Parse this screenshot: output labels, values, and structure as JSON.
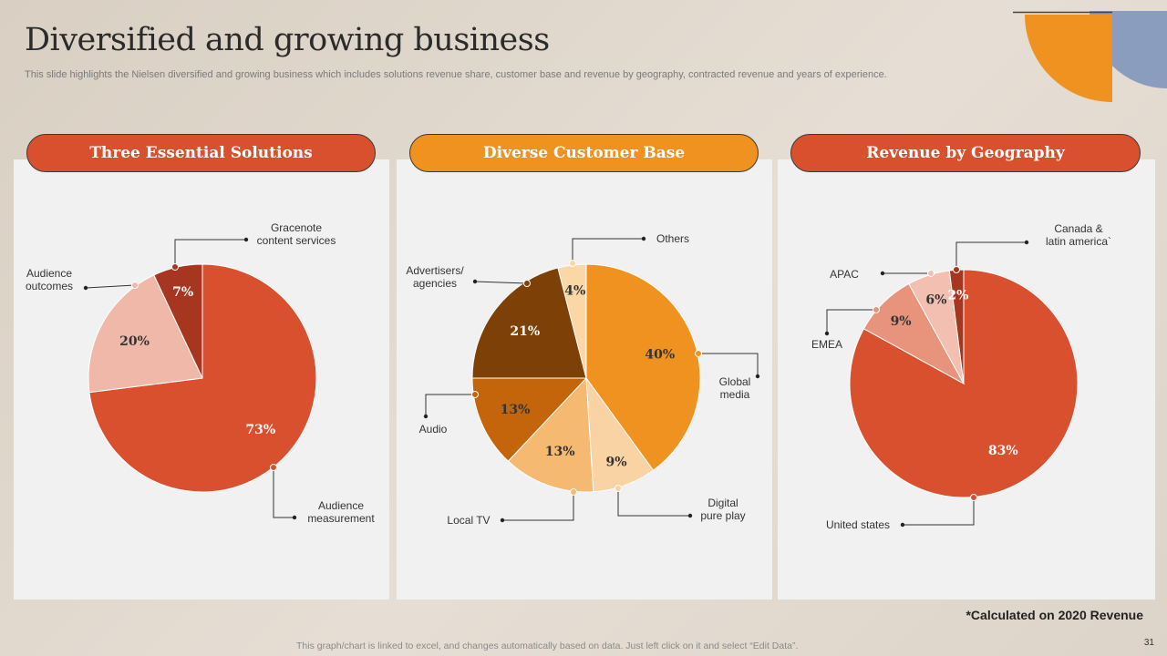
{
  "slide": {
    "title": "Diversified and growing business",
    "subtitle": "This slide highlights the Nielsen diversified and growing business which includes solutions revenue share, customer base and revenue by geography, contracted revenue and years of experience.",
    "footnote": "*Calculated on 2020 Revenue",
    "footer": "This graph/chart is linked to excel,  and changes automatically based on data. Just left click on it and select “Edit Data”.",
    "page_number": "31"
  },
  "colors": {
    "red": "#d9502f",
    "orange": "#f0921f",
    "deco_blue": "#8a9dbf"
  },
  "panels": [
    {
      "header": "Three Essential Solutions",
      "header_color": "#d9502f"
    },
    {
      "header": "Diverse Customer Base",
      "header_color": "#f0921f"
    },
    {
      "header": "Revenue by Geography",
      "header_color": "#d9502f"
    }
  ],
  "chart_data": [
    {
      "type": "pie",
      "title": "Three Essential Solutions",
      "slices": [
        {
          "label": [
            "Audience",
            "measurement"
          ],
          "value": 73,
          "display": "73%",
          "color": "#d9502f",
          "label_color": "#ffffff"
        },
        {
          "label": [
            "Audience",
            "outcomes"
          ],
          "value": 20,
          "display": "20%",
          "color": "#f0b8a8",
          "label_color": "#333333"
        },
        {
          "label": [
            "Gracenote",
            "content services"
          ],
          "value": 7,
          "display": "7%",
          "color": "#a73620",
          "label_color": "#ffffff"
        }
      ]
    },
    {
      "type": "pie",
      "title": "Diverse Customer Base",
      "slices": [
        {
          "label": [
            "Global",
            "media"
          ],
          "value": 40,
          "display": "40%",
          "color": "#f0921f",
          "label_color": "#333333"
        },
        {
          "label": [
            "Digital",
            "pure play"
          ],
          "value": 9,
          "display": "9%",
          "color": "#f9d3a3",
          "label_color": "#333333"
        },
        {
          "label": [
            "Local TV"
          ],
          "value": 13,
          "display": "13%",
          "color": "#f5b971",
          "label_color": "#333333"
        },
        {
          "label": [
            "Audio"
          ],
          "value": 13,
          "display": "13%",
          "color": "#c4650c",
          "label_color": "#333333"
        },
        {
          "label": [
            "Advertisers/",
            "agencies"
          ],
          "value": 21,
          "display": "21%",
          "color": "#7d4107",
          "label_color": "#ffffff"
        },
        {
          "label": [
            "Others"
          ],
          "value": 4,
          "display": "4%",
          "color": "#fbd7a5",
          "label_color": "#333333"
        }
      ]
    },
    {
      "type": "pie",
      "title": "Revenue by Geography",
      "slices": [
        {
          "label": [
            "United states"
          ],
          "value": 83,
          "display": "83%",
          "color": "#d9502f",
          "label_color": "#ffffff"
        },
        {
          "label": [
            "EMEA"
          ],
          "value": 9,
          "display": "9%",
          "color": "#e8937c",
          "label_color": "#333333"
        },
        {
          "label": [
            "APAC"
          ],
          "value": 6,
          "display": "6%",
          "color": "#f3bfb1",
          "label_color": "#333333"
        },
        {
          "label": [
            "Canada &",
            "latin america`"
          ],
          "value": 2,
          "display": "2%",
          "color": "#a73620",
          "label_color": "#ffffff"
        }
      ]
    }
  ]
}
